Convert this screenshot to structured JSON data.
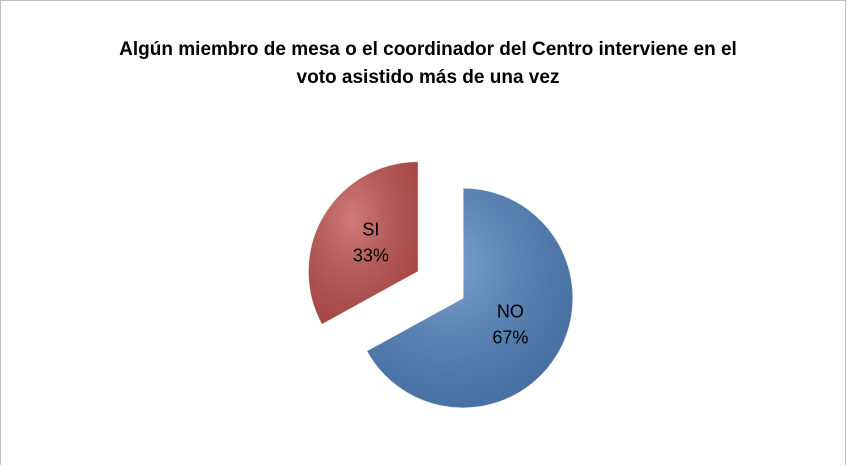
{
  "chart_data": {
    "type": "pie",
    "title": "Algún miembro de mesa o el coordinador del Centro interviene en el voto asistido más de una vez",
    "categories": [
      "NO",
      "SI"
    ],
    "values": [
      67,
      33
    ],
    "value_labels": [
      "67%",
      "33%"
    ],
    "colors": [
      "#4f81bd",
      "#c0504d"
    ]
  }
}
